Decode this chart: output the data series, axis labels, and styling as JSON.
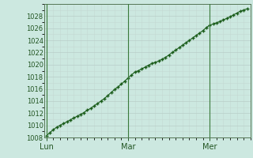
{
  "background_color": "#cce8e0",
  "plot_bg_color": "#cce8e0",
  "grid_major_color": "#b0ccC4",
  "grid_minor_color": "#c0dcd6",
  "line_color": "#1a5c1a",
  "marker_color": "#1a5c1a",
  "vline_color": "#3a7a3a",
  "ylim": [
    1008,
    1030
  ],
  "yticks": [
    1008,
    1010,
    1012,
    1014,
    1016,
    1018,
    1020,
    1022,
    1024,
    1026,
    1028
  ],
  "xtick_labels": [
    "Lun",
    "Mar",
    "Mer"
  ],
  "xtick_positions": [
    0,
    36,
    72
  ],
  "xlim": [
    -1,
    90
  ],
  "x_values": [
    0,
    1.5,
    3,
    4.5,
    6,
    7.5,
    9,
    10.5,
    12,
    13.5,
    15,
    16.5,
    18,
    19.5,
    21,
    22.5,
    24,
    25.5,
    27,
    28.5,
    30,
    31.5,
    33,
    34.5,
    36,
    37.5,
    39,
    40.5,
    42,
    43.5,
    45,
    46.5,
    48,
    49.5,
    51,
    52.5,
    54,
    55.5,
    57,
    58.5,
    60,
    61.5,
    63,
    64.5,
    66,
    67.5,
    69,
    70.5,
    72,
    73.5,
    75,
    76.5,
    78,
    79.5,
    81,
    82.5,
    84,
    85.5,
    87,
    88.5
  ],
  "y_values": [
    1008.3,
    1008.8,
    1009.3,
    1009.7,
    1010.0,
    1010.3,
    1010.6,
    1010.9,
    1011.2,
    1011.5,
    1011.8,
    1012.1,
    1012.5,
    1012.8,
    1013.2,
    1013.6,
    1014.0,
    1014.4,
    1014.9,
    1015.4,
    1015.9,
    1016.3,
    1016.8,
    1017.3,
    1017.8,
    1018.3,
    1018.8,
    1019.0,
    1019.3,
    1019.6,
    1019.9,
    1020.2,
    1020.4,
    1020.6,
    1020.9,
    1021.2,
    1021.6,
    1022.0,
    1022.4,
    1022.8,
    1023.2,
    1023.6,
    1024.0,
    1024.4,
    1024.8,
    1025.2,
    1025.6,
    1026.1,
    1026.5,
    1026.7,
    1026.9,
    1027.1,
    1027.4,
    1027.6,
    1027.9,
    1028.2,
    1028.5,
    1028.8,
    1029.0,
    1029.2
  ],
  "ylabel_fontsize": 6,
  "xlabel_fontsize": 7
}
